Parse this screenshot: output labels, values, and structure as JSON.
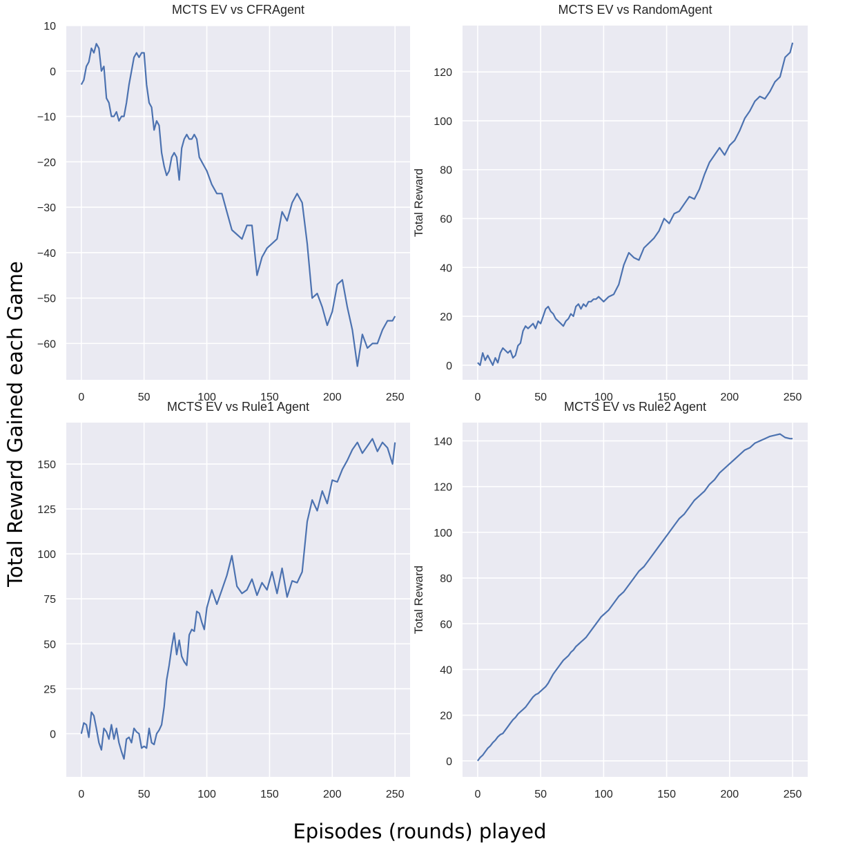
{
  "figure": {
    "ylabel": "Total Reward Gained each Game",
    "xlabel": "Episodes (rounds) played"
  },
  "colors": {
    "panel_background": "#eaeaf2",
    "gridline": "#ffffff",
    "line": "#4c72b0",
    "text": "#262626"
  },
  "chart_data": [
    {
      "type": "line",
      "title": "MCTS EV vs CFRAgent",
      "xlabel": "",
      "ylabel": "",
      "xlim": [
        -12,
        262
      ],
      "ylim": [
        -68,
        10
      ],
      "xticks": [
        0,
        50,
        100,
        150,
        200,
        250
      ],
      "yticks": [
        10,
        0,
        -10,
        -20,
        -30,
        -40,
        -50,
        -60
      ],
      "ytick_labels": [
        "10",
        "0",
        "−10",
        "−20",
        "−30",
        "−40",
        "−50",
        "−60"
      ],
      "grid": true,
      "series": [
        {
          "x": [
            0,
            2,
            4,
            6,
            8,
            10,
            12,
            14,
            16,
            18,
            20,
            22,
            24,
            26,
            28,
            30,
            32,
            34,
            36,
            38,
            40,
            42,
            44,
            46,
            48,
            50,
            52,
            54,
            56,
            58,
            60,
            62,
            64,
            66,
            68,
            70,
            72,
            74,
            76,
            78,
            80,
            82,
            84,
            86,
            88,
            90,
            92,
            94,
            96,
            98,
            100,
            104,
            108,
            112,
            116,
            120,
            124,
            128,
            132,
            136,
            140,
            144,
            148,
            152,
            156,
            160,
            164,
            168,
            172,
            176,
            180,
            184,
            188,
            192,
            196,
            200,
            204,
            208,
            212,
            216,
            220,
            224,
            228,
            232,
            236,
            240,
            244,
            248,
            250
          ],
          "y": [
            -3,
            -2,
            1,
            2,
            5,
            4,
            6,
            5,
            0,
            1,
            -6,
            -7,
            -10,
            -10,
            -9,
            -11,
            -10,
            -10,
            -7,
            -3,
            0,
            3,
            4,
            3,
            4,
            4,
            -3,
            -7,
            -8,
            -13,
            -11,
            -12,
            -18,
            -21,
            -23,
            -22,
            -19,
            -18,
            -19,
            -24,
            -17,
            -15,
            -14,
            -15,
            -15,
            -14,
            -15,
            -19,
            -20,
            -21,
            -22,
            -25,
            -27,
            -27,
            -31,
            -35,
            -36,
            -37,
            -34,
            -34,
            -45,
            -41,
            -39,
            -38,
            -37,
            -31,
            -33,
            -29,
            -27,
            -29,
            -38,
            -50,
            -49,
            -52,
            -56,
            -53,
            -47,
            -46,
            -52,
            -57,
            -65,
            -58,
            -61,
            -60,
            -60,
            -57,
            -55,
            -55,
            -54
          ]
        }
      ]
    },
    {
      "type": "line",
      "title": "MCTS EV vs RandomAgent",
      "xlabel": "",
      "ylabel": "Total Reward",
      "xlim": [
        -12,
        262
      ],
      "ylim": [
        -6,
        139
      ],
      "xticks": [
        0,
        50,
        100,
        150,
        200,
        250
      ],
      "yticks": [
        0,
        20,
        40,
        60,
        80,
        100,
        120
      ],
      "ytick_labels": [
        "0",
        "20",
        "40",
        "60",
        "80",
        "100",
        "120"
      ],
      "grid": true,
      "series": [
        {
          "x": [
            0,
            2,
            4,
            6,
            8,
            10,
            12,
            14,
            16,
            18,
            20,
            22,
            24,
            26,
            28,
            30,
            32,
            34,
            36,
            38,
            40,
            42,
            44,
            46,
            48,
            50,
            52,
            54,
            56,
            58,
            60,
            62,
            64,
            66,
            68,
            70,
            72,
            74,
            76,
            78,
            80,
            82,
            84,
            86,
            88,
            90,
            92,
            94,
            96,
            98,
            100,
            104,
            108,
            112,
            116,
            120,
            124,
            128,
            132,
            136,
            140,
            144,
            148,
            152,
            156,
            160,
            164,
            168,
            172,
            176,
            180,
            184,
            188,
            192,
            196,
            200,
            204,
            208,
            212,
            216,
            220,
            224,
            228,
            232,
            236,
            240,
            244,
            248,
            250
          ],
          "y": [
            1,
            0,
            5,
            2,
            4,
            2,
            0,
            3,
            1,
            5,
            7,
            6,
            5,
            6,
            3,
            4,
            8,
            9,
            14,
            16,
            15,
            16,
            17,
            15,
            18,
            17,
            20,
            23,
            24,
            22,
            21,
            19,
            18,
            17,
            16,
            18,
            19,
            21,
            20,
            24,
            25,
            23,
            25,
            24,
            26,
            26,
            27,
            27,
            28,
            27,
            26,
            28,
            29,
            33,
            41,
            46,
            44,
            43,
            48,
            50,
            52,
            55,
            60,
            58,
            62,
            63,
            66,
            69,
            68,
            72,
            78,
            83,
            86,
            89,
            86,
            90,
            92,
            96,
            101,
            104,
            108,
            110,
            109,
            112,
            116,
            118,
            126,
            128,
            132
          ]
        }
      ]
    },
    {
      "type": "line",
      "title": "MCTS EV vs Rule1 Agent",
      "xlabel": "",
      "ylabel": "",
      "xlim": [
        -12,
        262
      ],
      "ylim": [
        -24,
        173
      ],
      "xticks": [
        0,
        50,
        100,
        150,
        200,
        250
      ],
      "yticks": [
        150,
        125,
        100,
        75,
        50,
        25,
        0
      ],
      "ytick_labels": [
        "150",
        "125",
        "100",
        "75",
        "50",
        "25",
        "0"
      ],
      "grid": true,
      "series": [
        {
          "x": [
            0,
            2,
            4,
            6,
            8,
            10,
            12,
            14,
            16,
            18,
            20,
            22,
            24,
            26,
            28,
            30,
            32,
            34,
            36,
            38,
            40,
            42,
            44,
            46,
            48,
            50,
            52,
            54,
            56,
            58,
            60,
            62,
            64,
            66,
            68,
            70,
            72,
            74,
            76,
            78,
            80,
            82,
            84,
            86,
            88,
            90,
            92,
            94,
            96,
            98,
            100,
            104,
            108,
            112,
            116,
            120,
            124,
            128,
            132,
            136,
            140,
            144,
            148,
            152,
            156,
            160,
            164,
            168,
            172,
            176,
            180,
            184,
            188,
            192,
            196,
            200,
            204,
            208,
            212,
            216,
            220,
            224,
            228,
            232,
            236,
            240,
            244,
            248,
            250
          ],
          "y": [
            0,
            6,
            5,
            -2,
            12,
            10,
            3,
            -5,
            -9,
            3,
            1,
            -3,
            5,
            -3,
            3,
            -5,
            -10,
            -14,
            -3,
            -2,
            -5,
            3,
            1,
            0,
            -8,
            -7,
            -8,
            3,
            -5,
            -6,
            0,
            2,
            5,
            15,
            30,
            38,
            48,
            56,
            44,
            52,
            43,
            40,
            38,
            55,
            58,
            57,
            68,
            67,
            62,
            58,
            70,
            80,
            72,
            80,
            88,
            99,
            82,
            78,
            80,
            86,
            77,
            84,
            80,
            90,
            78,
            92,
            76,
            85,
            84,
            90,
            118,
            130,
            124,
            135,
            128,
            141,
            140,
            147,
            152,
            158,
            162,
            156,
            160,
            164,
            157,
            162,
            159,
            150,
            162
          ]
        }
      ]
    },
    {
      "type": "line",
      "title": "MCTS EV vs Rule2 Agent",
      "xlabel": "",
      "ylabel": "Total Reward",
      "xlim": [
        -12,
        262
      ],
      "ylim": [
        -7,
        148
      ],
      "xticks": [
        0,
        50,
        100,
        150,
        200,
        250
      ],
      "yticks": [
        0,
        20,
        40,
        60,
        80,
        100,
        120,
        140
      ],
      "ytick_labels": [
        "0",
        "20",
        "40",
        "60",
        "80",
        "100",
        "120",
        "140"
      ],
      "grid": true,
      "series": [
        {
          "x": [
            0,
            2,
            4,
            6,
            8,
            10,
            12,
            14,
            16,
            18,
            20,
            22,
            24,
            26,
            28,
            30,
            32,
            34,
            36,
            38,
            40,
            42,
            44,
            46,
            48,
            50,
            52,
            54,
            56,
            58,
            60,
            62,
            64,
            66,
            68,
            70,
            72,
            74,
            76,
            78,
            80,
            82,
            84,
            86,
            88,
            90,
            92,
            94,
            96,
            98,
            100,
            104,
            108,
            112,
            116,
            120,
            124,
            128,
            132,
            136,
            140,
            144,
            148,
            152,
            156,
            160,
            164,
            168,
            172,
            176,
            180,
            184,
            188,
            192,
            196,
            200,
            204,
            208,
            212,
            216,
            220,
            224,
            228,
            232,
            236,
            240,
            244,
            248,
            250
          ],
          "y": [
            0,
            1.5,
            2.5,
            4,
            5.5,
            6.5,
            8,
            9,
            10.5,
            11.5,
            12,
            13.5,
            15,
            16.5,
            18,
            19,
            20.5,
            21.5,
            22.5,
            23.5,
            25,
            26.5,
            28,
            29,
            29.5,
            30.5,
            31.5,
            32.5,
            34,
            36,
            38,
            39.5,
            41,
            42.5,
            44,
            45,
            46,
            47.5,
            48.5,
            50,
            51,
            52,
            53,
            54,
            55.5,
            57,
            58.5,
            60,
            61.5,
            63,
            64,
            66,
            69,
            72,
            74,
            77,
            80,
            83,
            85,
            88,
            91,
            94,
            97,
            100,
            103,
            106,
            108,
            111,
            114,
            116,
            118,
            121,
            123,
            126,
            128,
            130,
            132,
            134,
            136,
            137,
            139,
            140,
            141,
            142,
            142.5,
            143,
            141.5,
            141,
            141
          ]
        }
      ]
    }
  ]
}
